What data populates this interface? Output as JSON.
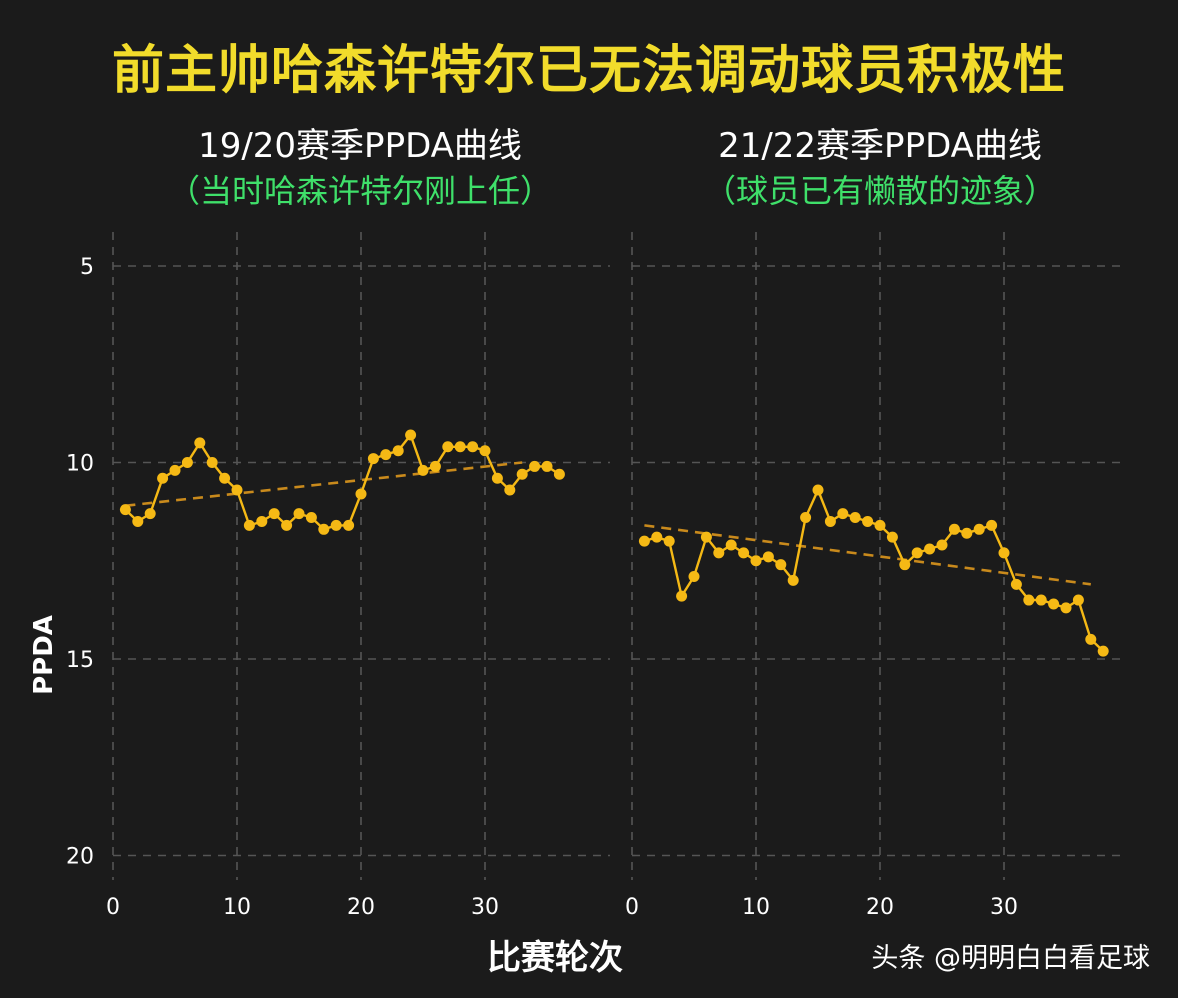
{
  "title": "前主帅哈森许特尔已无法调动球员积极性",
  "xlabel": "比赛轮次",
  "ylabel": "PPDA",
  "watermark": "头条 @明明白白看足球",
  "colors": {
    "title": "#f2dc2b",
    "subtitle": "#3fe06a",
    "line": "#f5b915",
    "trend": "#c98a1c",
    "grid": "#555555",
    "background": "#1b1b1b"
  },
  "chart_data": [
    {
      "type": "line",
      "title": "19/20赛季PPDA曲线",
      "subtitle": "（当时哈森许特尔刚上任）",
      "x_ticks": [
        0,
        10,
        20,
        30
      ],
      "y_ticks": [
        5,
        10,
        15,
        20
      ],
      "ylim": [
        20.5,
        3.8
      ],
      "y_inverted": true,
      "grid": true,
      "x": [
        1,
        2,
        3,
        4,
        5,
        6,
        7,
        8,
        9,
        10,
        11,
        12,
        13,
        14,
        15,
        16,
        17,
        18,
        19,
        20,
        21,
        22,
        23,
        24,
        25,
        26,
        27,
        28,
        29,
        30,
        31,
        32,
        33,
        34,
        35,
        36
      ],
      "y": [
        11.2,
        11.5,
        11.3,
        10.4,
        10.2,
        10.0,
        9.5,
        10.0,
        10.4,
        10.7,
        11.6,
        11.5,
        11.3,
        11.6,
        11.3,
        11.4,
        11.7,
        11.6,
        11.6,
        10.8,
        9.9,
        9.8,
        9.7,
        9.3,
        10.2,
        10.1,
        9.6,
        9.6,
        9.6,
        9.7,
        10.4,
        10.7,
        10.3,
        10.1,
        10.1,
        10.3
      ],
      "trend": [
        [
          1,
          11.1
        ],
        [
          33,
          10.0
        ]
      ]
    },
    {
      "type": "line",
      "title": "21/22赛季PPDA曲线",
      "subtitle": "（球员已有懒散的迹象）",
      "x_ticks": [
        0,
        10,
        20,
        30
      ],
      "y_ticks": [
        5,
        10,
        15,
        20
      ],
      "ylim": [
        20.5,
        3.8
      ],
      "y_inverted": true,
      "grid": true,
      "x": [
        1,
        2,
        3,
        4,
        5,
        6,
        7,
        8,
        9,
        10,
        11,
        12,
        13,
        14,
        15,
        16,
        17,
        18,
        19,
        20,
        21,
        22,
        23,
        24,
        25,
        26,
        27,
        28,
        29,
        30,
        31,
        32,
        33,
        34,
        35,
        36,
        37,
        38
      ],
      "y": [
        12.0,
        11.9,
        12.0,
        13.4,
        12.9,
        11.9,
        12.3,
        12.1,
        12.3,
        12.5,
        12.4,
        12.6,
        13.0,
        11.4,
        10.7,
        11.5,
        11.3,
        11.4,
        11.5,
        11.6,
        11.9,
        12.6,
        12.3,
        12.2,
        12.1,
        11.7,
        11.8,
        11.7,
        11.6,
        12.3,
        13.1,
        13.5,
        13.5,
        13.6,
        13.7,
        13.5,
        14.5,
        14.8
      ],
      "trend": [
        [
          1,
          11.6
        ],
        [
          37,
          13.1
        ]
      ]
    }
  ]
}
